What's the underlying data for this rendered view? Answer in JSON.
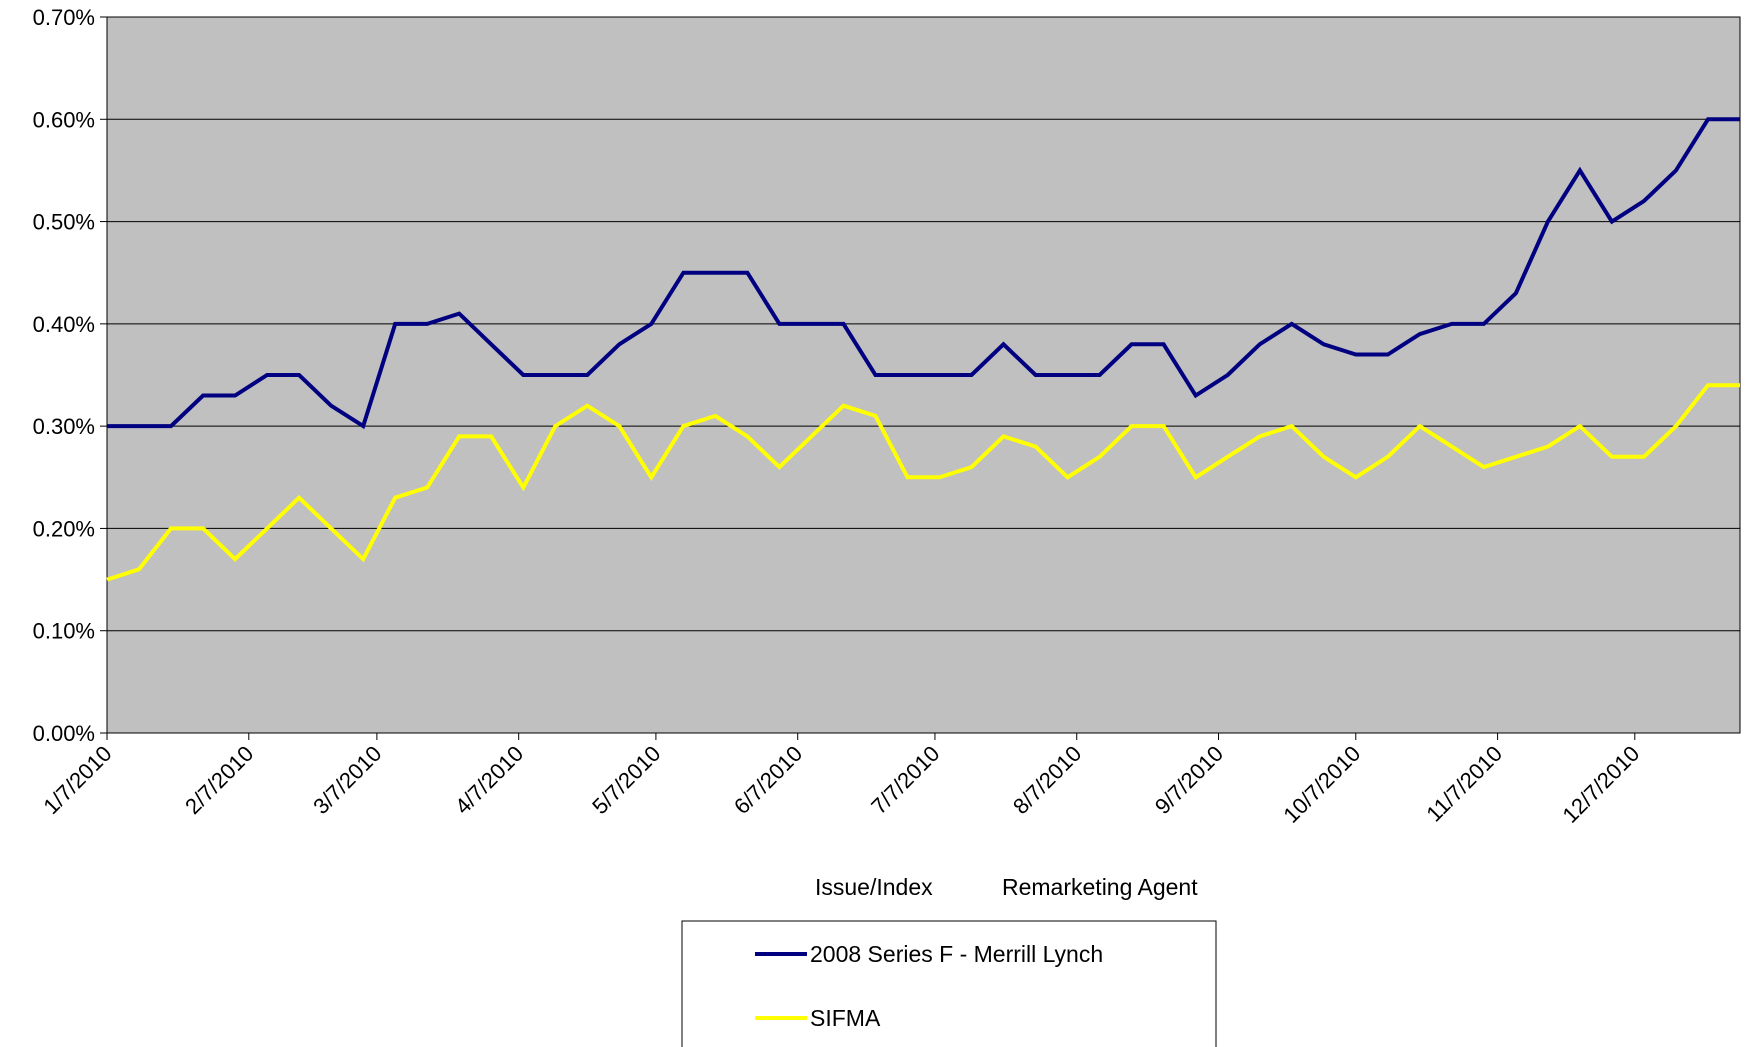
{
  "chart_data": {
    "type": "line",
    "title": "",
    "xlabel": [
      "Issue/Index",
      "Remarketing Agent"
    ],
    "ylabel": "",
    "ylim": [
      0,
      0.7
    ],
    "yticks": [
      "0.00%",
      "0.10%",
      "0.20%",
      "0.30%",
      "0.40%",
      "0.50%",
      "0.60%",
      "0.70%"
    ],
    "xticks": [
      "1/7/2010",
      "2/7/2010",
      "3/7/2010",
      "4/7/2010",
      "5/7/2010",
      "6/7/2010",
      "7/7/2010",
      "8/7/2010",
      "9/7/2010",
      "10/7/2010",
      "11/7/2010",
      "12/7/2010"
    ],
    "grid": true,
    "legend_position": "bottom",
    "x": [
      "1/7/2010",
      "1/14/2010",
      "1/21/2010",
      "1/28/2010",
      "2/4/2010",
      "2/11/2010",
      "2/18/2010",
      "2/25/2010",
      "3/4/2010",
      "3/11/2010",
      "3/18/2010",
      "3/25/2010",
      "4/1/2010",
      "4/8/2010",
      "4/15/2010",
      "4/22/2010",
      "4/29/2010",
      "5/6/2010",
      "5/13/2010",
      "5/20/2010",
      "5/27/2010",
      "6/3/2010",
      "6/10/2010",
      "6/17/2010",
      "6/24/2010",
      "7/1/2010",
      "7/8/2010",
      "7/15/2010",
      "7/22/2010",
      "7/29/2010",
      "8/5/2010",
      "8/12/2010",
      "8/19/2010",
      "8/26/2010",
      "9/2/2010",
      "9/9/2010",
      "9/16/2010",
      "9/23/2010",
      "9/30/2010",
      "10/7/2010",
      "10/14/2010",
      "10/21/2010",
      "10/28/2010",
      "11/4/2010",
      "11/11/2010",
      "11/18/2010",
      "11/25/2010",
      "12/2/2010",
      "12/9/2010",
      "12/16/2010",
      "12/23/2010",
      "12/30/2010"
    ],
    "series": [
      {
        "name": "2008 Series F - Merrill Lynch",
        "color": "#000080",
        "values": [
          0.3,
          0.3,
          0.3,
          0.33,
          0.33,
          0.35,
          0.35,
          0.32,
          0.3,
          0.4,
          0.4,
          0.41,
          0.38,
          0.35,
          0.35,
          0.35,
          0.38,
          0.4,
          0.45,
          0.45,
          0.45,
          0.4,
          0.4,
          0.4,
          0.35,
          0.35,
          0.35,
          0.35,
          0.38,
          0.35,
          0.35,
          0.35,
          0.38,
          0.38,
          0.33,
          0.35,
          0.38,
          0.4,
          0.38,
          0.37,
          0.37,
          0.39,
          0.4,
          0.4,
          0.43,
          0.5,
          0.55,
          0.5,
          0.52,
          0.55,
          0.6,
          0.6
        ]
      },
      {
        "name": "SIFMA",
        "color": "#FFFF00",
        "values": [
          0.15,
          0.16,
          0.2,
          0.2,
          0.17,
          0.2,
          0.23,
          0.2,
          0.17,
          0.23,
          0.24,
          0.29,
          0.29,
          0.24,
          0.3,
          0.32,
          0.3,
          0.25,
          0.3,
          0.31,
          0.29,
          0.26,
          0.29,
          0.32,
          0.31,
          0.25,
          0.25,
          0.26,
          0.29,
          0.28,
          0.25,
          0.27,
          0.3,
          0.3,
          0.25,
          0.27,
          0.29,
          0.3,
          0.27,
          0.25,
          0.27,
          0.3,
          0.28,
          0.26,
          0.27,
          0.28,
          0.3,
          0.27,
          0.27,
          0.3,
          0.34,
          0.34
        ]
      }
    ]
  },
  "style": {
    "plot_background": "#C0C0C0",
    "grid_color": "#000000"
  }
}
